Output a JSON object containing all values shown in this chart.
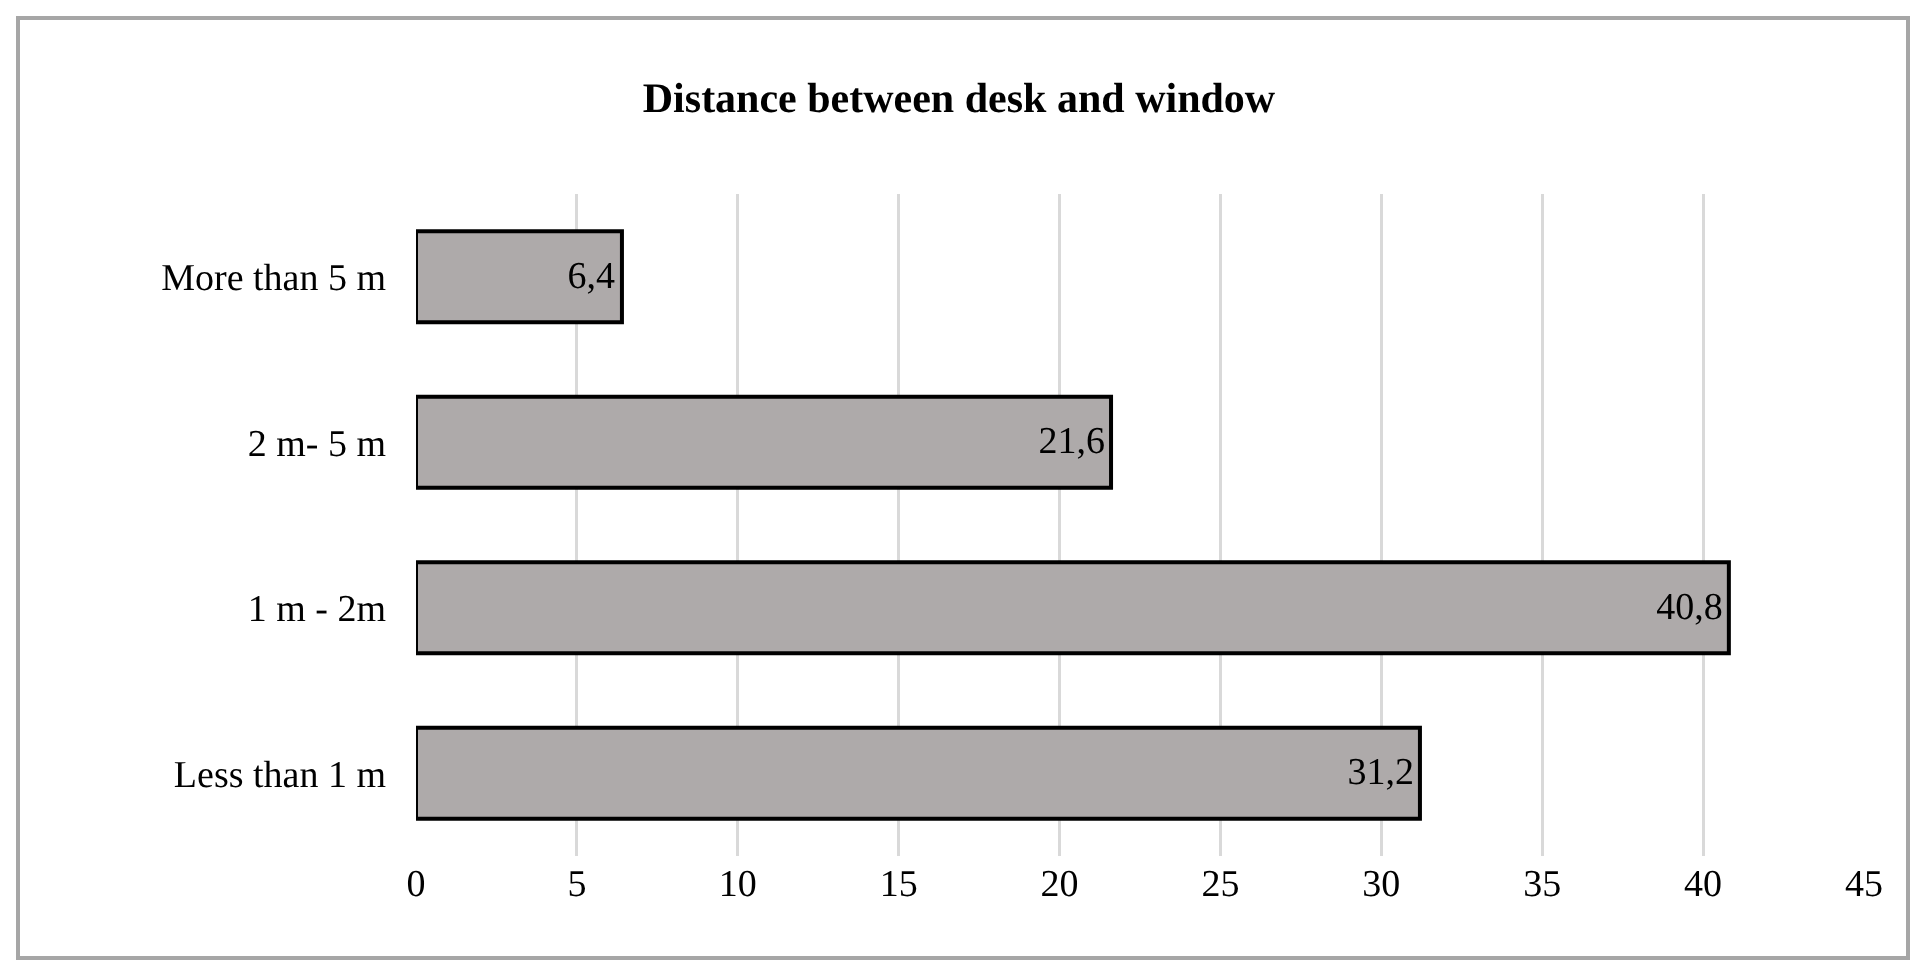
{
  "chart_data": {
    "type": "bar",
    "orientation": "horizontal",
    "title": "Distance between desk and window",
    "categories": [
      "More than 5 m",
      "2 m- 5 m",
      "1 m - 2m",
      "Less than 1 m"
    ],
    "values": [
      6.4,
      21.6,
      40.8,
      31.2
    ],
    "value_labels": [
      "6,4",
      "21,6",
      "40,8",
      "31,2"
    ],
    "color": "#aeaaaa",
    "xlim": [
      0,
      45
    ],
    "xticks": [
      0,
      5,
      10,
      15,
      20,
      25,
      30,
      35,
      40,
      45
    ],
    "grid": "x"
  }
}
